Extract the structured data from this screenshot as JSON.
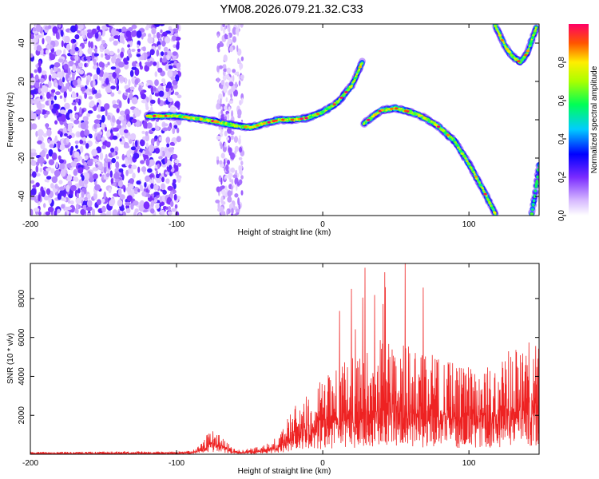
{
  "title": "YM08.2026.079.21.32.C33",
  "colors": {
    "snr_line": "#ee2222",
    "frame": "#000000",
    "background": "#ffffff"
  },
  "chart_data": [
    {
      "type": "heatmap",
      "title": "",
      "xlabel": "Height of straight line (km)",
      "ylabel": "Frequency (Hz)",
      "xlim": [
        -200,
        148
      ],
      "ylim": [
        -50,
        50
      ],
      "xticks": [
        -200,
        -100,
        0,
        100
      ],
      "yticks": [
        -40,
        -20,
        0,
        20,
        40
      ],
      "colorbar": {
        "label": "Normalized spectral amplitude",
        "range": [
          0,
          1
        ],
        "ticks": [
          0.0,
          0.2,
          0.4,
          0.6,
          0.8
        ],
        "colormap": "rainbow"
      },
      "noise_region": {
        "x": [
          -200,
          -98
        ],
        "description_value": "scattered low-amplitude energy"
      },
      "noise_stripe": {
        "x": [
          -72,
          -55
        ]
      },
      "ridges": [
        {
          "name": "branch-1",
          "amplitude_peak": 1.0,
          "x": [
            -120,
            -100,
            -80,
            -60,
            -50,
            -40,
            -30,
            -20,
            -10,
            0,
            10,
            20,
            27
          ],
          "y": [
            2,
            2,
            0,
            -3,
            -4,
            -2,
            0,
            0,
            1,
            4,
            9,
            18,
            30
          ]
        },
        {
          "name": "branch-2",
          "amplitude_peak": 1.0,
          "x": [
            28,
            40,
            50,
            60,
            70,
            80,
            90,
            100,
            110,
            118
          ],
          "y": [
            -2,
            5,
            6,
            4,
            1,
            -4,
            -11,
            -23,
            -37,
            -49
          ]
        },
        {
          "name": "branch-3",
          "amplitude_peak": 0.9,
          "x": [
            118,
            120,
            125,
            130,
            135,
            140,
            146
          ],
          "y": [
            49,
            46,
            38,
            33,
            30,
            35,
            48
          ]
        },
        {
          "name": "branch-4",
          "amplitude_peak": 0.6,
          "x": [
            143,
            145,
            148
          ],
          "y": [
            -49,
            -40,
            -24
          ]
        }
      ]
    },
    {
      "type": "line",
      "title": "",
      "xlabel": "Height of straight line (km)",
      "ylabel": "SNR (10 * v/v)",
      "xlim": [
        -200,
        148
      ],
      "ylim": [
        0,
        9800
      ],
      "xticks": [
        -200,
        -100,
        0,
        100
      ],
      "yticks": [
        2000,
        4000,
        6000,
        8000
      ],
      "series": [
        {
          "name": "SNR",
          "envelope_x": [
            -200,
            -110,
            -90,
            -82,
            -75,
            -68,
            -62,
            -55,
            -45,
            -30,
            -22,
            -10,
            0,
            10,
            20,
            30,
            40,
            50,
            60,
            70,
            80,
            90,
            100,
            110,
            120,
            130,
            140,
            148
          ],
          "envelope_y": [
            60,
            80,
            120,
            400,
            1100,
            600,
            200,
            150,
            250,
            600,
            1500,
            2200,
            2600,
            3000,
            3300,
            3600,
            4000,
            3800,
            3700,
            3500,
            3400,
            3200,
            3000,
            2900,
            3300,
            3700,
            3900,
            3700
          ],
          "peak_max": 9800
        }
      ]
    }
  ]
}
